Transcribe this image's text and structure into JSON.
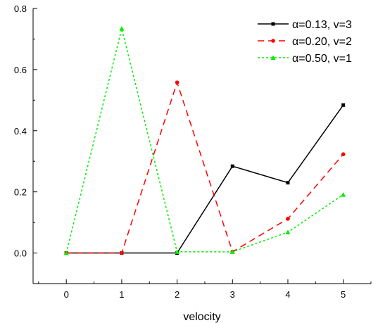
{
  "chart_data": {
    "type": "line",
    "title": "",
    "xlabel": "velocity",
    "ylabel": "",
    "xlim": [
      -0.6,
      5.5
    ],
    "ylim": [
      -0.1,
      0.8
    ],
    "x_ticks": [
      0,
      1,
      2,
      3,
      4,
      5
    ],
    "x_tick_labels": [
      "0",
      "1",
      "2",
      "3",
      "4",
      "5"
    ],
    "y_ticks": [
      0.0,
      0.2,
      0.4,
      0.6,
      0.8
    ],
    "y_tick_labels": [
      "0.0",
      "0.2",
      "0.4",
      "0.6",
      "0.8"
    ],
    "grid": false,
    "legend_position": "top-right",
    "x": [
      0,
      1,
      2,
      3,
      4,
      5
    ],
    "series": [
      {
        "name": "α=0.13, v=3",
        "values": [
          0.0,
          0.0,
          0.0,
          0.284,
          0.23,
          0.484
        ],
        "color": "#000000",
        "line_style": "solid",
        "marker": "square"
      },
      {
        "name": "α=0.20, v=2",
        "values": [
          0.0,
          0.0,
          0.558,
          0.004,
          0.112,
          0.323
        ],
        "color": "#ff0000",
        "line_style": "dashed",
        "marker": "circle"
      },
      {
        "name": "α=0.50, v=1",
        "values": [
          0.0,
          0.734,
          0.004,
          0.004,
          0.068,
          0.191
        ],
        "color": "#00ee00",
        "line_style": "dotted",
        "marker": "triangle"
      }
    ]
  }
}
